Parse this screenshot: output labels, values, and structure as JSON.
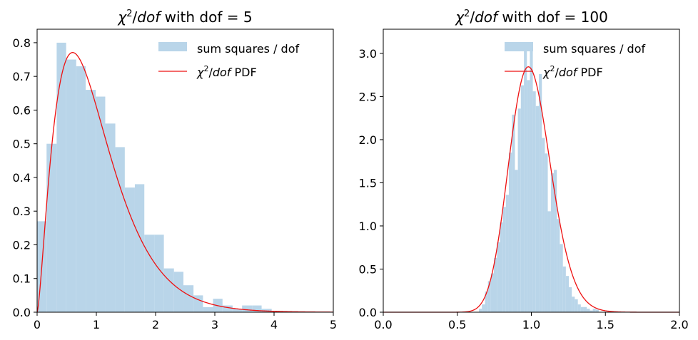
{
  "chart_data": [
    {
      "type": "histogram",
      "title": {
        "chi": "χ",
        "sup": "2",
        "dof_word": "dof",
        "rest": " with dof = 5"
      },
      "xlim": [
        0,
        5
      ],
      "ylim": [
        0,
        0.84
      ],
      "xticks": [
        0,
        1,
        2,
        3,
        4,
        5
      ],
      "xtick_labels": [
        "0",
        "1",
        "2",
        "3",
        "4",
        "5"
      ],
      "yticks": [
        0,
        0.1,
        0.2,
        0.3,
        0.4,
        0.5,
        0.6,
        0.7,
        0.8
      ],
      "ytick_labels": [
        "0.0",
        "0.1",
        "0.2",
        "0.3",
        "0.4",
        "0.5",
        "0.6",
        "0.7",
        "0.8"
      ],
      "legend": {
        "placement": "top-right",
        "hist_label": "sum squares / dof",
        "pdf_label": {
          "chi": "χ",
          "sup": "2",
          "dof_word": "dof",
          "rest": " PDF"
        }
      },
      "bar_color": "#b9d5e9",
      "curve_color": "#ee1111",
      "dof": 5,
      "bins": [
        {
          "x0": 0.0,
          "x1": 0.16,
          "h": 0.27
        },
        {
          "x0": 0.16,
          "x1": 0.33,
          "h": 0.5
        },
        {
          "x0": 0.33,
          "x1": 0.49,
          "h": 0.8
        },
        {
          "x0": 0.49,
          "x1": 0.66,
          "h": 0.75
        },
        {
          "x0": 0.66,
          "x1": 0.82,
          "h": 0.73
        },
        {
          "x0": 0.82,
          "x1": 0.99,
          "h": 0.66
        },
        {
          "x0": 0.99,
          "x1": 1.15,
          "h": 0.64
        },
        {
          "x0": 1.15,
          "x1": 1.32,
          "h": 0.56
        },
        {
          "x0": 1.32,
          "x1": 1.48,
          "h": 0.49
        },
        {
          "x0": 1.48,
          "x1": 1.65,
          "h": 0.37
        },
        {
          "x0": 1.65,
          "x1": 1.81,
          "h": 0.38
        },
        {
          "x0": 1.81,
          "x1": 1.98,
          "h": 0.23
        },
        {
          "x0": 1.98,
          "x1": 2.14,
          "h": 0.23
        },
        {
          "x0": 2.14,
          "x1": 2.31,
          "h": 0.13
        },
        {
          "x0": 2.31,
          "x1": 2.47,
          "h": 0.12
        },
        {
          "x0": 2.47,
          "x1": 2.64,
          "h": 0.08
        },
        {
          "x0": 2.64,
          "x1": 2.8,
          "h": 0.05
        },
        {
          "x0": 2.8,
          "x1": 2.97,
          "h": 0.015
        },
        {
          "x0": 2.97,
          "x1": 3.13,
          "h": 0.04
        },
        {
          "x0": 3.13,
          "x1": 3.3,
          "h": 0.02
        },
        {
          "x0": 3.3,
          "x1": 3.46,
          "h": 0.01
        },
        {
          "x0": 3.46,
          "x1": 3.63,
          "h": 0.02
        },
        {
          "x0": 3.63,
          "x1": 3.79,
          "h": 0.02
        },
        {
          "x0": 3.79,
          "x1": 3.96,
          "h": 0.01
        }
      ]
    },
    {
      "type": "histogram",
      "title": {
        "chi": "χ",
        "sup": "2",
        "dof_word": "dof",
        "rest": " with dof = 100"
      },
      "xlim": [
        0,
        2
      ],
      "ylim": [
        0,
        3.28
      ],
      "xticks": [
        0,
        0.5,
        1.0,
        1.5,
        2.0
      ],
      "xtick_labels": [
        "0.0",
        "0.5",
        "1.0",
        "1.5",
        "2.0"
      ],
      "yticks": [
        0,
        0.5,
        1.0,
        1.5,
        2.0,
        2.5,
        3.0
      ],
      "ytick_labels": [
        "0.0",
        "0.5",
        "1.0",
        "1.5",
        "2.0",
        "2.5",
        "3.0"
      ],
      "legend": {
        "placement": "top-right",
        "hist_label": "sum squares / dof",
        "pdf_label": {
          "chi": "χ",
          "sup": "2",
          "dof_word": "dof",
          "rest": " PDF"
        }
      },
      "bar_color": "#b9d5e9",
      "curve_color": "#ee1111",
      "dof": 100,
      "bins": [
        {
          "x0": 0.646,
          "x1": 0.666,
          "h": 0.04
        },
        {
          "x0": 0.666,
          "x1": 0.687,
          "h": 0.09
        },
        {
          "x0": 0.687,
          "x1": 0.707,
          "h": 0.24
        },
        {
          "x0": 0.707,
          "x1": 0.727,
          "h": 0.36
        },
        {
          "x0": 0.727,
          "x1": 0.747,
          "h": 0.45
        },
        {
          "x0": 0.747,
          "x1": 0.768,
          "h": 0.63
        },
        {
          "x0": 0.768,
          "x1": 0.788,
          "h": 0.81
        },
        {
          "x0": 0.788,
          "x1": 0.808,
          "h": 1.04
        },
        {
          "x0": 0.808,
          "x1": 0.828,
          "h": 1.22
        },
        {
          "x0": 0.828,
          "x1": 0.848,
          "h": 1.36
        },
        {
          "x0": 0.848,
          "x1": 0.869,
          "h": 1.85
        },
        {
          "x0": 0.869,
          "x1": 0.889,
          "h": 2.29
        },
        {
          "x0": 0.889,
          "x1": 0.909,
          "h": 1.65
        },
        {
          "x0": 0.909,
          "x1": 0.929,
          "h": 2.36
        },
        {
          "x0": 0.929,
          "x1": 0.95,
          "h": 2.63
        },
        {
          "x0": 0.95,
          "x1": 0.97,
          "h": 3.11
        },
        {
          "x0": 0.97,
          "x1": 0.99,
          "h": 2.69
        },
        {
          "x0": 0.99,
          "x1": 1.01,
          "h": 3.11
        },
        {
          "x0": 1.01,
          "x1": 1.03,
          "h": 2.56
        },
        {
          "x0": 1.03,
          "x1": 1.051,
          "h": 2.39
        },
        {
          "x0": 1.051,
          "x1": 1.071,
          "h": 2.76
        },
        {
          "x0": 1.071,
          "x1": 1.091,
          "h": 2.02
        },
        {
          "x0": 1.091,
          "x1": 1.111,
          "h": 1.84
        },
        {
          "x0": 1.111,
          "x1": 1.132,
          "h": 1.17
        },
        {
          "x0": 1.132,
          "x1": 1.152,
          "h": 1.61
        },
        {
          "x0": 1.152,
          "x1": 1.172,
          "h": 1.65
        },
        {
          "x0": 1.172,
          "x1": 1.192,
          "h": 1.08
        },
        {
          "x0": 1.192,
          "x1": 1.213,
          "h": 0.79
        },
        {
          "x0": 1.213,
          "x1": 1.233,
          "h": 0.53
        },
        {
          "x0": 1.233,
          "x1": 1.253,
          "h": 0.42
        },
        {
          "x0": 1.253,
          "x1": 1.273,
          "h": 0.29
        },
        {
          "x0": 1.273,
          "x1": 1.293,
          "h": 0.18
        },
        {
          "x0": 1.293,
          "x1": 1.314,
          "h": 0.15
        },
        {
          "x0": 1.314,
          "x1": 1.334,
          "h": 0.09
        },
        {
          "x0": 1.334,
          "x1": 1.354,
          "h": 0.06
        },
        {
          "x0": 1.354,
          "x1": 1.374,
          "h": 0.06
        },
        {
          "x0": 1.374,
          "x1": 1.395,
          "h": 0.04
        },
        {
          "x0": 1.395,
          "x1": 1.415,
          "h": 0.02
        },
        {
          "x0": 1.415,
          "x1": 1.435,
          "h": 0.04
        },
        {
          "x0": 1.435,
          "x1": 1.455,
          "h": 0.03
        }
      ]
    }
  ]
}
